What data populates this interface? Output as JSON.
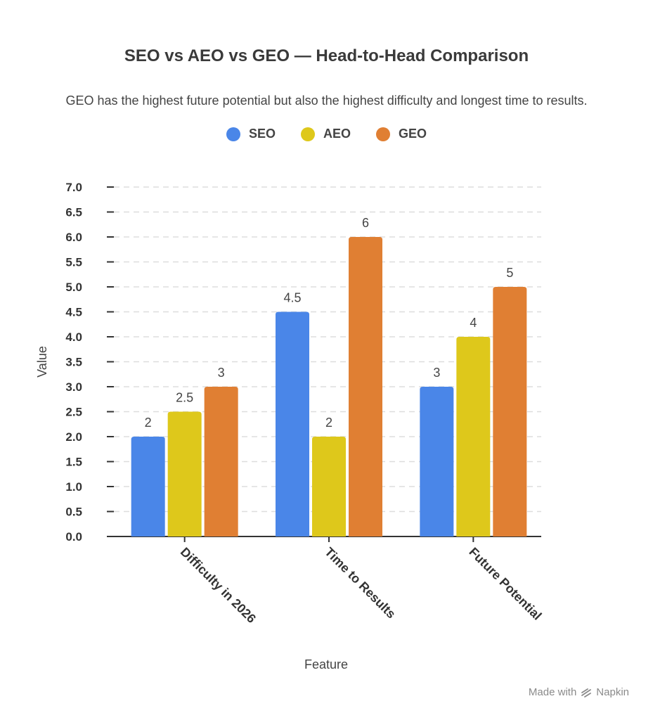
{
  "colors": {
    "SEO": "#4a86e8",
    "AEO": "#dec81b",
    "GEO": "#e07f33",
    "grid": "#dddddd",
    "axis": "#333333"
  },
  "footer": {
    "made_with": "Made with",
    "brand": "Napkin",
    "brand_icon": "napkin-logo-icon"
  },
  "chart_data": {
    "type": "bar",
    "title": "SEO vs AEO vs GEO — Head-to-Head Comparison",
    "subtitle": "GEO has the highest future potential but also the highest difficulty and longest time to results.",
    "xlabel": "Feature",
    "ylabel": "Value",
    "categories": [
      "Difficulty in 2026",
      "Time to Results",
      "Future Potential"
    ],
    "series": [
      {
        "name": "SEO",
        "values": [
          2,
          4.5,
          3
        ]
      },
      {
        "name": "AEO",
        "values": [
          2.5,
          2,
          4
        ]
      },
      {
        "name": "GEO",
        "values": [
          3,
          6,
          5
        ]
      }
    ],
    "ylim": [
      0,
      7
    ],
    "yticks": [
      "0.0",
      "0.5",
      "1.0",
      "1.5",
      "2.0",
      "2.5",
      "3.0",
      "3.5",
      "4.0",
      "4.5",
      "5.0",
      "5.5",
      "6.0",
      "6.5",
      "7.0"
    ],
    "data_labels": [
      [
        "2",
        "4.5",
        "3"
      ],
      [
        "2.5",
        "2",
        "4"
      ],
      [
        "3",
        "6",
        "5"
      ]
    ],
    "grid": true,
    "legend_position": "top-center"
  }
}
